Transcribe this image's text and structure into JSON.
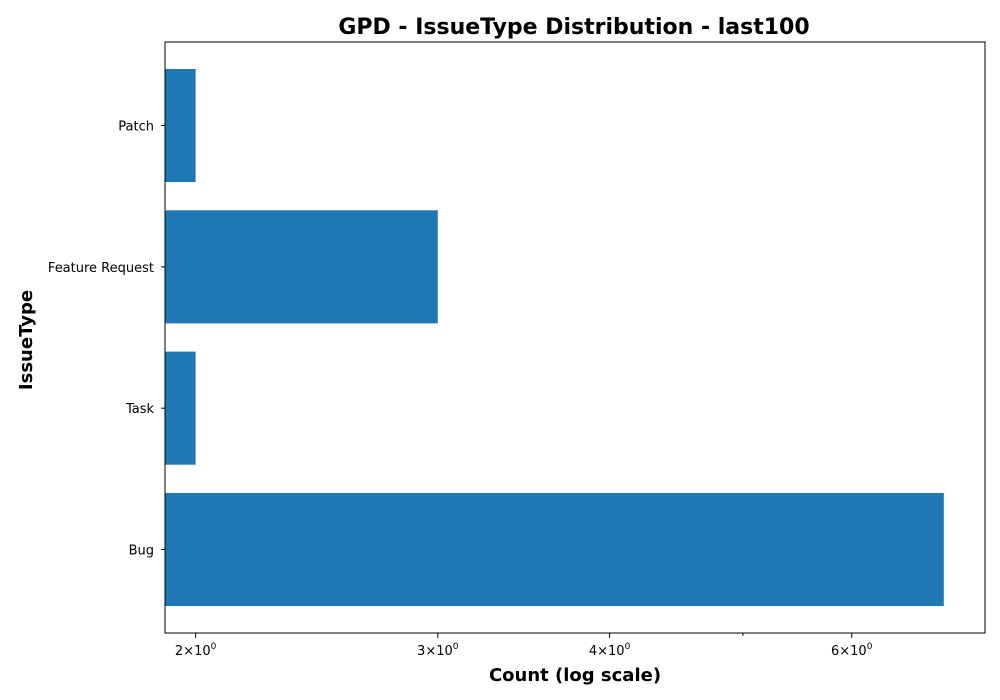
{
  "chart_data": {
    "type": "bar",
    "orientation": "horizontal",
    "title": "GPD - IssueType Distribution - last100",
    "xlabel": "Count (log scale)",
    "ylabel": "IssueType",
    "x_scale": "log",
    "xlim": [
      1.9,
      7.5
    ],
    "x_major_ticks": [
      {
        "value": 2,
        "base": "2×10",
        "exp": "0"
      },
      {
        "value": 3,
        "base": "3×10",
        "exp": "0"
      },
      {
        "value": 4,
        "base": "4×10",
        "exp": "0"
      },
      {
        "value": 6,
        "base": "6×10",
        "exp": "0"
      }
    ],
    "x_minor_ticks": [
      5
    ],
    "categories": [
      "Bug",
      "Task",
      "Feature Request",
      "Patch"
    ],
    "values": [
      7,
      2,
      3,
      2
    ],
    "bar_color": "#1f77b4",
    "grid": false,
    "legend": "none"
  }
}
